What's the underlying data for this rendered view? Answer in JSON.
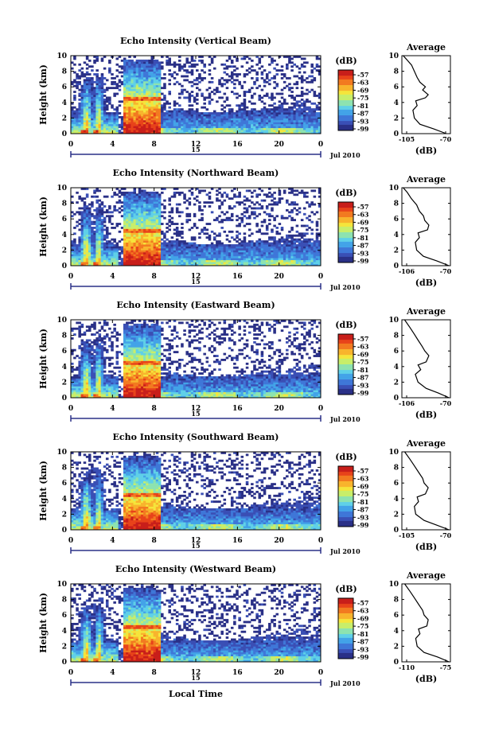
{
  "chart_data": [
    {
      "type": "heatmap",
      "title": "Echo Intensity (Vertical Beam)",
      "ylabel": "Height (km)",
      "ylim": [
        0,
        10
      ],
      "yticks": [
        "0",
        "2",
        "4",
        "6",
        "8",
        "10"
      ],
      "xlim": [
        0,
        24
      ],
      "xticks": [
        "0",
        "4",
        "8",
        "12",
        "16",
        "20",
        "0"
      ],
      "day_label": "15",
      "date_label": "Jul 2010",
      "colorbar": {
        "unit": "(dB)",
        "ticks": [
          "-57",
          "-63",
          "-69",
          "-75",
          "-81",
          "-87",
          "-93",
          "-99"
        ]
      },
      "profile": {
        "title": "Average",
        "xlabel": "(dB)",
        "xlim": [
          -105,
          -70
        ],
        "xticks": [
          "-105",
          "-70"
        ],
        "yticks": [
          "0",
          "2",
          "4",
          "6",
          "8",
          "10"
        ],
        "points": [
          [
            -73,
            0
          ],
          [
            -82,
            0.6
          ],
          [
            -92,
            1.2
          ],
          [
            -96,
            2
          ],
          [
            -97,
            3
          ],
          [
            -94,
            3.6
          ],
          [
            -95,
            4.2
          ],
          [
            -88,
            4.6
          ],
          [
            -86,
            5
          ],
          [
            -90,
            5.6
          ],
          [
            -88,
            6
          ],
          [
            -92,
            6.6
          ],
          [
            -94,
            7.2
          ],
          [
            -96,
            8
          ],
          [
            -98,
            8.8
          ],
          [
            -101,
            9.4
          ],
          [
            -104,
            10
          ]
        ]
      }
    },
    {
      "type": "heatmap",
      "title": "Echo Intensity (Northward Beam)",
      "ylabel": "Height (km)",
      "ylim": [
        0,
        10
      ],
      "yticks": [
        "0",
        "2",
        "4",
        "6",
        "8",
        "10"
      ],
      "xlim": [
        0,
        24
      ],
      "xticks": [
        "0",
        "4",
        "8",
        "12",
        "16",
        "20",
        "0"
      ],
      "day_label": "15",
      "date_label": "Jul 2010",
      "colorbar": {
        "unit": "(dB)",
        "ticks": [
          "-57",
          "-63",
          "-69",
          "-75",
          "-81",
          "-87",
          "-93",
          "-99"
        ]
      },
      "profile": {
        "title": "Average",
        "xlabel": "(dB)",
        "xlim": [
          -106,
          -70
        ],
        "xticks": [
          "-106",
          "-70"
        ],
        "yticks": [
          "0",
          "2",
          "4",
          "6",
          "8",
          "10"
        ],
        "points": [
          [
            -71,
            0
          ],
          [
            -80,
            0.6
          ],
          [
            -90,
            1.2
          ],
          [
            -95,
            2
          ],
          [
            -96,
            3
          ],
          [
            -93,
            3.6
          ],
          [
            -94,
            4.2
          ],
          [
            -87,
            4.6
          ],
          [
            -86,
            5.2
          ],
          [
            -89,
            5.8
          ],
          [
            -90,
            6.4
          ],
          [
            -93,
            7
          ],
          [
            -95,
            7.8
          ],
          [
            -99,
            8.6
          ],
          [
            -102,
            9.4
          ],
          [
            -105,
            10
          ]
        ]
      }
    },
    {
      "type": "heatmap",
      "title": "Echo Intensity (Eastward Beam)",
      "ylabel": "Height (km)",
      "ylim": [
        0,
        10
      ],
      "yticks": [
        "0",
        "2",
        "4",
        "6",
        "8",
        "10"
      ],
      "xlim": [
        0,
        24
      ],
      "xticks": [
        "0",
        "4",
        "8",
        "12",
        "16",
        "20",
        "0"
      ],
      "day_label": "15",
      "date_label": "Jul 2010",
      "colorbar": {
        "unit": "(dB)",
        "ticks": [
          "-57",
          "-63",
          "-69",
          "-75",
          "-81",
          "-87",
          "-93",
          "-99"
        ]
      },
      "profile": {
        "title": "Average",
        "xlabel": "(dB)",
        "xlim": [
          -106,
          -70
        ],
        "xticks": [
          "-106",
          "-70"
        ],
        "yticks": [
          "0",
          "2",
          "4",
          "6",
          "8",
          "10"
        ],
        "points": [
          [
            -71,
            0
          ],
          [
            -79,
            0.6
          ],
          [
            -88,
            1.2
          ],
          [
            -94,
            2
          ],
          [
            -96,
            3
          ],
          [
            -92,
            3.6
          ],
          [
            -94,
            4.2
          ],
          [
            -88,
            4.6
          ],
          [
            -86,
            5.4
          ],
          [
            -89,
            6
          ],
          [
            -91,
            6.6
          ],
          [
            -94,
            7.4
          ],
          [
            -97,
            8.2
          ],
          [
            -100,
            9
          ],
          [
            -104,
            10
          ]
        ]
      }
    },
    {
      "type": "heatmap",
      "title": "Echo Intensity (Southward Beam)",
      "ylabel": "Height (km)",
      "ylim": [
        0,
        10
      ],
      "yticks": [
        "0",
        "2",
        "4",
        "6",
        "8",
        "10"
      ],
      "xlim": [
        0,
        24
      ],
      "xticks": [
        "0",
        "4",
        "8",
        "12",
        "16",
        "20",
        "0"
      ],
      "day_label": "15",
      "date_label": "Jul 2010",
      "colorbar": {
        "unit": "(dB)",
        "ticks": [
          "-57",
          "-63",
          "-69",
          "-75",
          "-81",
          "-87",
          "-93",
          "-99"
        ]
      },
      "profile": {
        "title": "Average",
        "xlabel": "(dB)",
        "xlim": [
          -105,
          -70
        ],
        "xticks": [
          "-105",
          "-70"
        ],
        "yticks": [
          "0",
          "2",
          "4",
          "6",
          "8",
          "10"
        ],
        "points": [
          [
            -71,
            0
          ],
          [
            -80,
            0.6
          ],
          [
            -89,
            1.2
          ],
          [
            -95,
            2
          ],
          [
            -96,
            3
          ],
          [
            -93,
            3.6
          ],
          [
            -94,
            4.2
          ],
          [
            -88,
            4.6
          ],
          [
            -86,
            5.4
          ],
          [
            -89,
            6
          ],
          [
            -90,
            6.6
          ],
          [
            -93,
            7.4
          ],
          [
            -96,
            8.2
          ],
          [
            -99,
            9
          ],
          [
            -103,
            10
          ]
        ]
      }
    },
    {
      "type": "heatmap",
      "title": "Echo Intensity (Westward Beam)",
      "ylabel": "Height (km)",
      "ylim": [
        0,
        10
      ],
      "yticks": [
        "0",
        "2",
        "4",
        "6",
        "8",
        "10"
      ],
      "xlim": [
        0,
        24
      ],
      "xticks": [
        "0",
        "4",
        "8",
        "12",
        "16",
        "20",
        "0"
      ],
      "day_label": "15",
      "date_label": "Jul 2010",
      "xlabel": "Local Time",
      "colorbar": {
        "unit": "(dB)",
        "ticks": [
          "-57",
          "-63",
          "-69",
          "-75",
          "-81",
          "-87",
          "-93",
          "-99"
        ]
      },
      "profile": {
        "title": "Average",
        "xlabel": "(dB)",
        "xlim": [
          -110,
          -75
        ],
        "xticks": [
          "-110",
          "-75"
        ],
        "yticks": [
          "0",
          "2",
          "4",
          "6",
          "8",
          "10"
        ],
        "points": [
          [
            -76,
            0
          ],
          [
            -84,
            0.6
          ],
          [
            -94,
            1.2
          ],
          [
            -99,
            2
          ],
          [
            -100,
            3
          ],
          [
            -97,
            3.6
          ],
          [
            -98,
            4.2
          ],
          [
            -92,
            4.6
          ],
          [
            -91,
            5.4
          ],
          [
            -94,
            6
          ],
          [
            -95,
            6.6
          ],
          [
            -98,
            7.4
          ],
          [
            -101,
            8.2
          ],
          [
            -104,
            9
          ],
          [
            -108,
            10
          ]
        ]
      }
    }
  ],
  "colors": {
    "colormap": [
      "#2a3087",
      "#3a4fb5",
      "#3f77d8",
      "#43a3e8",
      "#5fd0e8",
      "#8de3b0",
      "#c8ee6a",
      "#f5e53b",
      "#f8b42d",
      "#f27a20",
      "#e8431a",
      "#c81e1a"
    ]
  }
}
